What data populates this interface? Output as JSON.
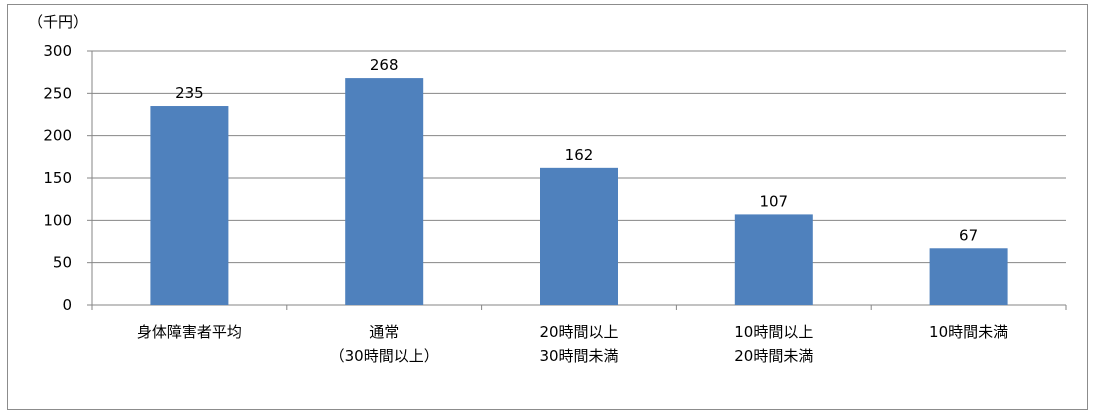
{
  "chart_data": {
    "type": "bar",
    "unit_label": "（千円）",
    "categories": [
      [
        "身体障害者平均"
      ],
      [
        "通常",
        "（30時間以上）"
      ],
      [
        "20時間以上",
        "30時間未満"
      ],
      [
        "10時間以上",
        "20時間未満"
      ],
      [
        "10時間未満"
      ]
    ],
    "values": [
      235,
      268,
      162,
      107,
      67
    ],
    "ylim": [
      0,
      300
    ],
    "yticks": [
      0,
      50,
      100,
      150,
      200,
      250,
      300
    ],
    "grid": true,
    "bar_color": "#4f81bd",
    "grid_color": "#868686",
    "legend": null
  }
}
